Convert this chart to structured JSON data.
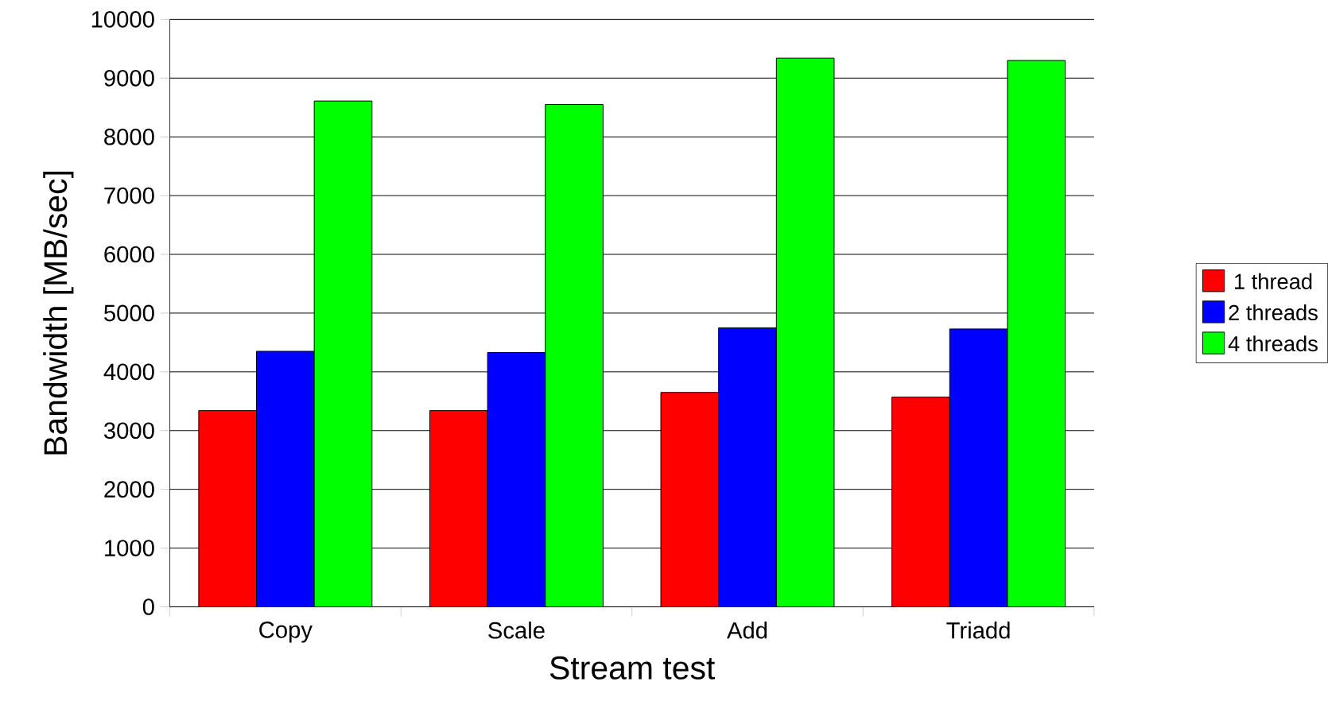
{
  "chart_data": {
    "type": "bar",
    "xlabel": "Stream test",
    "ylabel": "Bandwidth [MB/sec]",
    "categories": [
      "Copy",
      "Scale",
      "Add",
      "Triadd"
    ],
    "series": [
      {
        "name": "1 thread",
        "color": "#ff0000",
        "values": [
          3340,
          3340,
          3650,
          3570
        ]
      },
      {
        "name": "2 threads",
        "color": "#0000ff",
        "values": [
          4350,
          4330,
          4750,
          4730
        ]
      },
      {
        "name": "4 threads",
        "color": "#00ff00",
        "values": [
          8610,
          8550,
          9340,
          9300
        ]
      }
    ],
    "ylim": [
      0,
      10000
    ],
    "yticks": [
      0,
      1000,
      2000,
      3000,
      4000,
      5000,
      6000,
      7000,
      8000,
      9000,
      10000
    ],
    "grid": "y",
    "legend": "right"
  }
}
